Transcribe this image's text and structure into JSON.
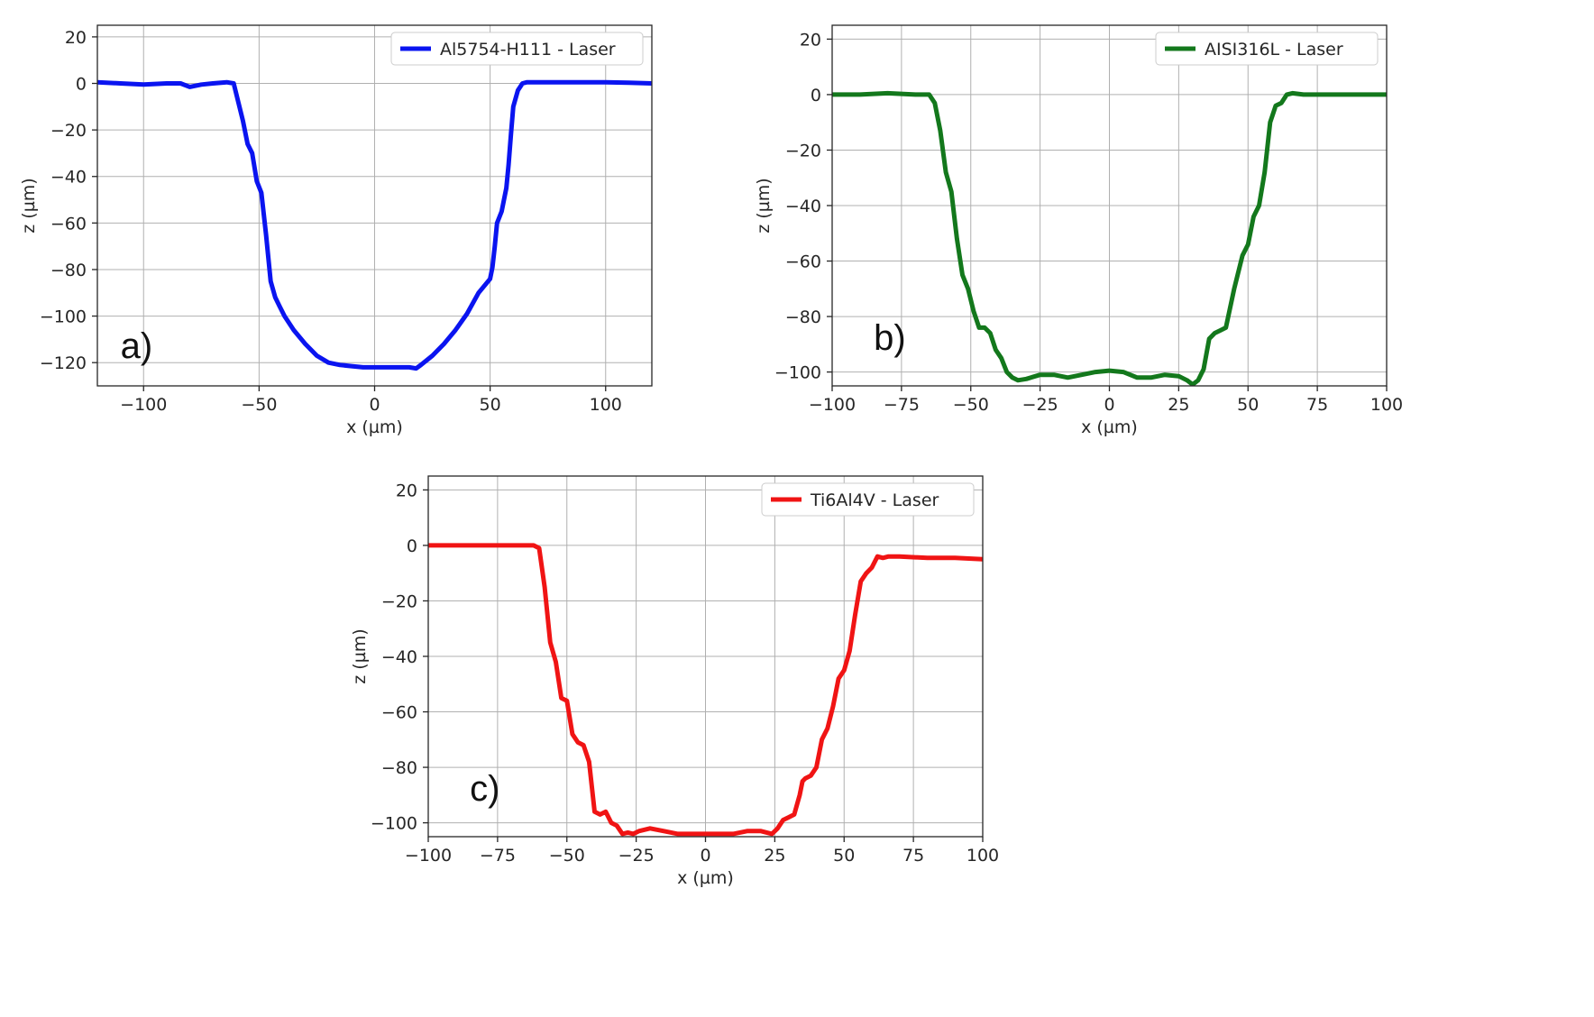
{
  "chart_data": [
    {
      "id": "a",
      "type": "line",
      "panel_label": "a)",
      "xlabel": "x (µm)",
      "ylabel": "z (µm)",
      "xlim": [
        -120,
        120
      ],
      "ylim": [
        -130,
        25
      ],
      "xticks": [
        -100,
        -50,
        0,
        50,
        100
      ],
      "yticks": [
        20,
        0,
        -20,
        -40,
        -60,
        -80,
        -100,
        -120
      ],
      "grid": true,
      "legend_position": "top-right",
      "series": [
        {
          "name": "Al5754-H111 - Laser",
          "color": "#0a14f0",
          "x": [
            -120,
            -110,
            -100,
            -90,
            -84,
            -80,
            -75,
            -70,
            -64,
            -61,
            -59,
            -57,
            -55,
            -53,
            -51,
            -49,
            -47,
            -45,
            -43,
            -41,
            -39,
            -35,
            -30,
            -25,
            -20,
            -15,
            -10,
            -5,
            0,
            5,
            10,
            15,
            18,
            20,
            25,
            30,
            35,
            40,
            45,
            50,
            51,
            52,
            53,
            55,
            56,
            57,
            58,
            59,
            60,
            62,
            64,
            66,
            70,
            80,
            90,
            100,
            110,
            120
          ],
          "y": [
            0.5,
            0,
            -0.5,
            0,
            0,
            -1.5,
            -0.5,
            0,
            0.5,
            0,
            -8,
            -16,
            -26,
            -30,
            -42,
            -47,
            -65,
            -85,
            -92,
            -96,
            -100,
            -106,
            -112,
            -117,
            -120,
            -121,
            -121.5,
            -122,
            -122,
            -122,
            -122,
            -122,
            -122.5,
            -121,
            -117,
            -112,
            -106,
            -99,
            -90,
            -84,
            -79,
            -70,
            -60,
            -55,
            -50,
            -45,
            -35,
            -22,
            -10,
            -3,
            0,
            0.5,
            0.5,
            0.5,
            0.5,
            0.5,
            0.3,
            0
          ]
        }
      ]
    },
    {
      "id": "b",
      "type": "line",
      "panel_label": "b)",
      "xlabel": "x (µm)",
      "ylabel": "z (µm)",
      "xlim": [
        -100,
        100
      ],
      "ylim": [
        -105,
        25
      ],
      "xticks": [
        -100,
        -75,
        -50,
        -25,
        0,
        25,
        50,
        75,
        100
      ],
      "yticks": [
        20,
        0,
        -20,
        -40,
        -60,
        -80,
        -100
      ],
      "grid": true,
      "legend_position": "top-right",
      "series": [
        {
          "name": "AISI316L - Laser",
          "color": "#13781c",
          "x": [
            -100,
            -90,
            -80,
            -70,
            -65,
            -63,
            -61,
            -59,
            -57,
            -55,
            -53,
            -51,
            -49,
            -47,
            -45,
            -43,
            -41,
            -39,
            -37,
            -35,
            -33,
            -30,
            -25,
            -20,
            -15,
            -10,
            -5,
            0,
            5,
            10,
            15,
            20,
            25,
            28,
            30,
            32,
            34,
            36,
            38,
            40,
            42,
            45,
            48,
            50,
            52,
            54,
            56,
            58,
            60,
            62,
            64,
            66,
            70,
            80,
            90,
            100
          ],
          "y": [
            0,
            0,
            0.5,
            0,
            0,
            -3,
            -13,
            -28,
            -35,
            -52,
            -65,
            -70,
            -78,
            -84,
            -84,
            -86,
            -92,
            -95,
            -100,
            -102,
            -103,
            -102.5,
            -101,
            -101,
            -102,
            -101,
            -100,
            -99.5,
            -100,
            -102,
            -102,
            -101,
            -101.5,
            -103,
            -104.5,
            -103,
            -99,
            -88,
            -86,
            -85,
            -84,
            -70,
            -58,
            -54,
            -44,
            -40,
            -28,
            -10,
            -4,
            -3,
            0,
            0.5,
            0,
            0,
            0,
            0
          ]
        }
      ]
    },
    {
      "id": "c",
      "type": "line",
      "panel_label": "c)",
      "xlabel": "x (µm)",
      "ylabel": "z (µm)",
      "xlim": [
        -100,
        100
      ],
      "ylim": [
        -105,
        25
      ],
      "xticks": [
        -100,
        -75,
        -50,
        -25,
        0,
        25,
        50,
        75,
        100
      ],
      "yticks": [
        20,
        0,
        -20,
        -40,
        -60,
        -80,
        -100
      ],
      "grid": true,
      "legend_position": "top-right",
      "series": [
        {
          "name": "Ti6Al4V - Laser",
          "color": "#f01414",
          "x": [
            -100,
            -90,
            -80,
            -70,
            -62,
            -60,
            -58,
            -56,
            -54,
            -52,
            -50,
            -48,
            -46,
            -44,
            -42,
            -40,
            -38,
            -36,
            -34,
            -32,
            -30,
            -28,
            -26,
            -24,
            -20,
            -15,
            -10,
            -5,
            0,
            5,
            10,
            15,
            20,
            24,
            26,
            28,
            30,
            32,
            34,
            35,
            36,
            38,
            40,
            42,
            44,
            46,
            48,
            50,
            52,
            54,
            56,
            58,
            60,
            62,
            64,
            66,
            70,
            80,
            90,
            100
          ],
          "y": [
            0,
            0,
            0,
            0,
            0,
            -1,
            -15,
            -35,
            -42,
            -55,
            -56,
            -68,
            -71,
            -72,
            -78,
            -96,
            -97,
            -96,
            -100,
            -101,
            -104,
            -103.5,
            -104,
            -103,
            -102,
            -103,
            -104,
            -104,
            -104,
            -104,
            -104,
            -103,
            -103,
            -104,
            -102,
            -99,
            -98,
            -97,
            -90,
            -85,
            -84,
            -83,
            -80,
            -70,
            -66,
            -58,
            -48,
            -45,
            -38,
            -25,
            -13,
            -10,
            -8,
            -4,
            -4.5,
            -4,
            -4,
            -4.5,
            -4.5,
            -5
          ]
        }
      ]
    }
  ]
}
